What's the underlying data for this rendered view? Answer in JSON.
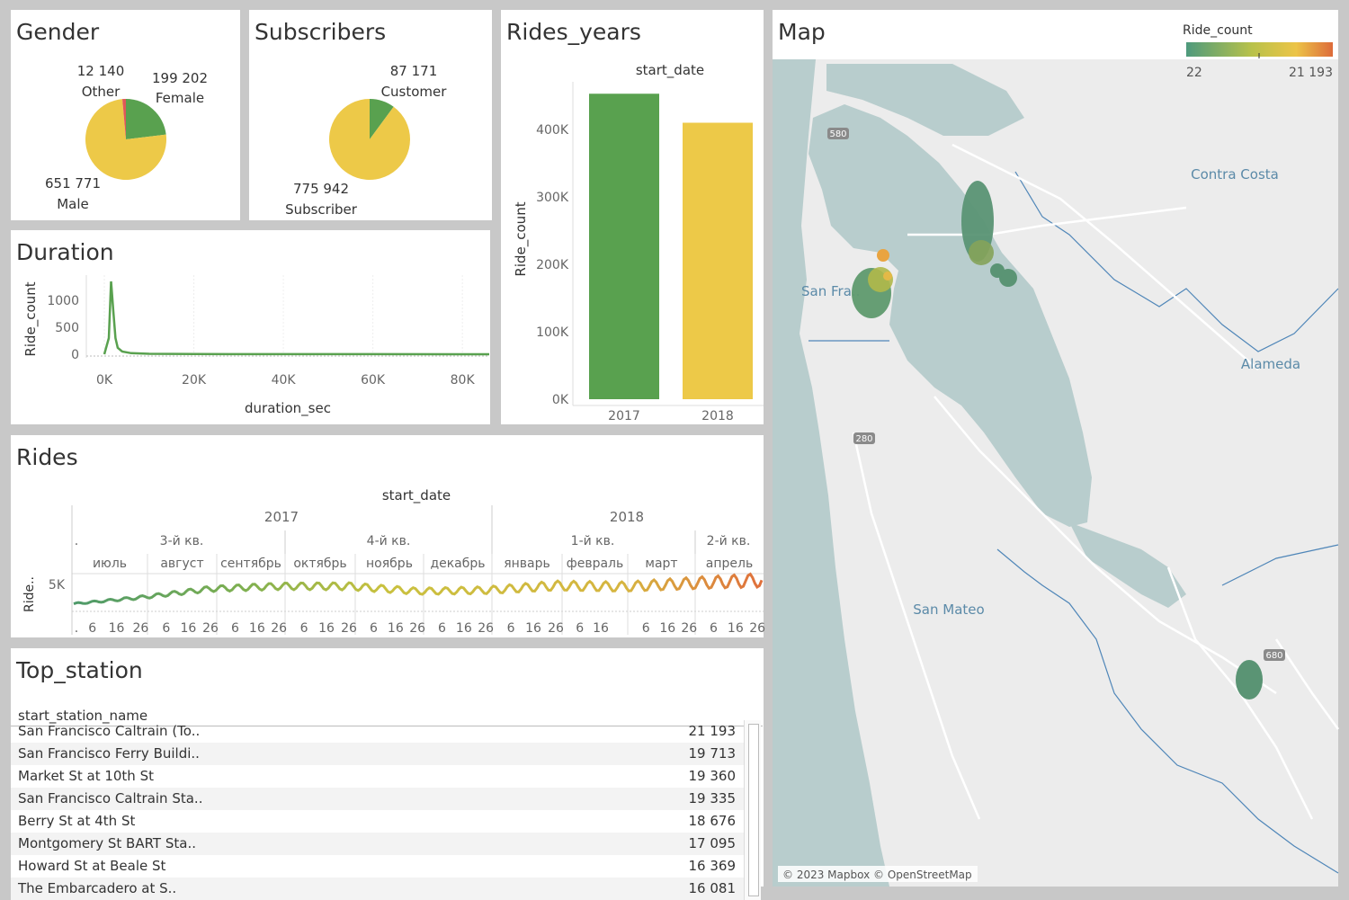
{
  "panels": {
    "gender": {
      "title": "Gender",
      "slices": [
        {
          "value_label": "199 202",
          "category": "Female",
          "value": 199202,
          "color": "#59a14f"
        },
        {
          "value_label": "12 140",
          "category": "Other",
          "value": 12140,
          "color": "#e15759"
        },
        {
          "value_label": "651 771",
          "category": "Male",
          "value": 651771,
          "color": "#edc948"
        }
      ]
    },
    "subscribers": {
      "title": "Subscribers",
      "slices": [
        {
          "value_label": "87 171",
          "category": "Customer",
          "value": 87171,
          "color": "#59a14f"
        },
        {
          "value_label": "775 942",
          "category": "Subscriber",
          "value": 775942,
          "color": "#edc948"
        }
      ]
    },
    "rides_years": {
      "title": "Rides_years",
      "header": "start_date",
      "ylabel": "Ride_count",
      "y_ticks": [
        "0K",
        "100K",
        "200K",
        "300K",
        "400K"
      ],
      "categories": [
        "2017",
        "2018"
      ]
    },
    "duration": {
      "title": "Duration",
      "ylabel": "Ride_count",
      "xlabel": "duration_sec",
      "y_ticks": [
        "0",
        "500",
        "1000"
      ],
      "x_ticks": [
        "0K",
        "20K",
        "40K",
        "60K",
        "80K"
      ]
    },
    "rides": {
      "title": "Rides",
      "header": "start_date",
      "ylabel": "Ride..",
      "y_tick": "5K",
      "years": [
        "2017",
        "2018"
      ],
      "quarters": [
        "3-й кв.",
        "4-й кв.",
        "1-й кв.",
        "2-й кв."
      ],
      "months": [
        "июль",
        "август",
        "сентябрь",
        "октябрь",
        "ноябрь",
        "декабрь",
        "январь",
        "февраль",
        "март",
        "апрель"
      ],
      "day_ticks": [
        "6",
        "16",
        "26"
      ],
      "dot": "."
    },
    "top_station": {
      "title": "Top_station",
      "column": "start_station_name",
      "rows": [
        {
          "name": "San Francisco Caltrain (To..",
          "count": "21 193"
        },
        {
          "name": "San Francisco Ferry Buildi..",
          "count": "19 713"
        },
        {
          "name": "Market St at 10th St",
          "count": "19 360"
        },
        {
          "name": "San Francisco Caltrain Sta..",
          "count": "19 335"
        },
        {
          "name": "Berry St at 4th St",
          "count": "18 676"
        },
        {
          "name": "Montgomery St BART Sta..",
          "count": "17 095"
        },
        {
          "name": "Howard St at Beale St",
          "count": "16 369"
        },
        {
          "name": "The Embarcadero at S..",
          "count": "16 081"
        }
      ]
    },
    "map": {
      "title": "Map",
      "legend_title": "Ride_count",
      "legend_min": "22",
      "legend_max": "21 193",
      "place_labels": [
        "Contra Costa",
        "Alameda",
        "San Fra..",
        "San Mateo"
      ],
      "highway_shields": [
        "580",
        "280",
        "680"
      ],
      "attribution": "© 2023 Mapbox © OpenStreetMap"
    }
  },
  "chart_data": [
    {
      "type": "pie",
      "title": "Gender",
      "categories": [
        "Female",
        "Other",
        "Male"
      ],
      "values": [
        199202,
        12140,
        651771
      ]
    },
    {
      "type": "pie",
      "title": "Subscribers",
      "categories": [
        "Customer",
        "Subscriber"
      ],
      "values": [
        87171,
        775942
      ]
    },
    {
      "type": "bar",
      "title": "Rides_years",
      "categories": [
        "2017",
        "2018"
      ],
      "values": [
        453000,
        410000
      ],
      "xlabel": "start_date",
      "ylabel": "Ride_count",
      "ylim": [
        0,
        450000
      ]
    },
    {
      "type": "line",
      "title": "Duration",
      "x": [
        0,
        1000,
        1500,
        2000,
        2500,
        3000,
        4000,
        6000,
        10000,
        20000,
        40000,
        60000,
        86000
      ],
      "values": [
        0,
        300,
        1350,
        800,
        300,
        120,
        50,
        20,
        8,
        3,
        1,
        1,
        0
      ],
      "xlabel": "duration_sec",
      "ylabel": "Ride_count",
      "xlim": [
        0,
        86400
      ],
      "ylim": [
        0,
        1400
      ]
    },
    {
      "type": "line",
      "title": "Rides",
      "x": [
        "2017-07-01",
        "2017-08-01",
        "2017-09-01",
        "2017-10-01",
        "2017-11-01",
        "2017-12-01",
        "2018-01-01",
        "2018-02-01",
        "2018-03-01",
        "2018-04-01",
        "2018-04-30"
      ],
      "values": [
        1500,
        2800,
        4500,
        5000,
        5000,
        4000,
        4200,
        5100,
        4900,
        5600,
        6200
      ],
      "xlabel": "start_date",
      "ylabel": "Ride.."
    }
  ]
}
